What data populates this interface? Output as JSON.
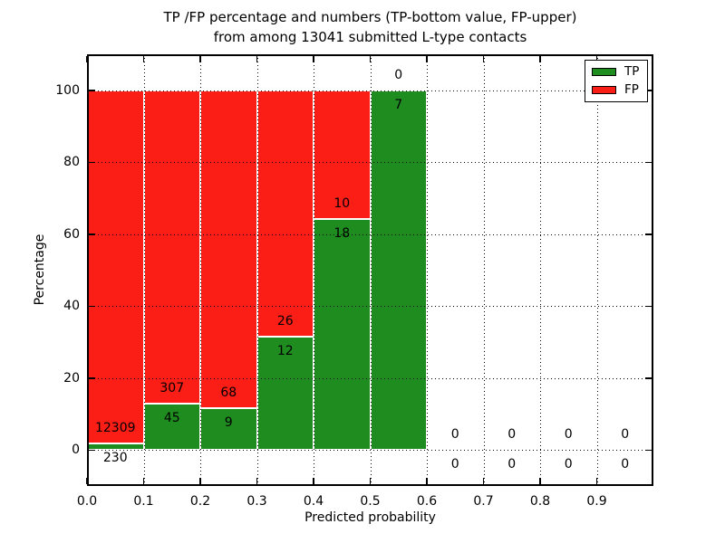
{
  "figure": {
    "title_line1": "TP /FP percentage and numbers (TP-bottom value, FP-upper)",
    "title_line2": "from among 13041 submitted L-type contacts"
  },
  "chart_data": {
    "type": "bar",
    "stacked": true,
    "title": "TP /FP percentage and numbers (TP-bottom value, FP-upper) from among 13041 submitted L-type contacts",
    "xlabel": "Predicted probability",
    "ylabel": "Percentage",
    "xlim": [
      0.0,
      1.0
    ],
    "ylim": [
      -10,
      110
    ],
    "x_ticks": [
      "0.0",
      "0.1",
      "0.2",
      "0.3",
      "0.4",
      "0.5",
      "0.6",
      "0.7",
      "0.8",
      "0.9"
    ],
    "y_ticks": [
      "0",
      "20",
      "40",
      "60",
      "80",
      "100"
    ],
    "grid": true,
    "grid_style": "dotted",
    "legend_position": "upper right",
    "bin_edges": [
      0.0,
      0.1,
      0.2,
      0.3,
      0.4,
      0.5,
      0.6,
      0.7,
      0.8,
      0.9,
      1.0
    ],
    "series": [
      {
        "name": "TP",
        "color": "#1f8c1f",
        "counts": [
          230,
          45,
          9,
          12,
          18,
          7,
          0,
          0,
          0,
          0
        ]
      },
      {
        "name": "FP",
        "color": "#fa1e16",
        "counts": [
          12309,
          307,
          68,
          26,
          10,
          0,
          0,
          0,
          0,
          0
        ]
      }
    ],
    "tp_percent_per_bin": [
      1.83,
      12.78,
      11.69,
      31.58,
      64.29,
      100.0,
      null,
      null,
      null,
      null
    ],
    "total_contacts": 13041
  }
}
